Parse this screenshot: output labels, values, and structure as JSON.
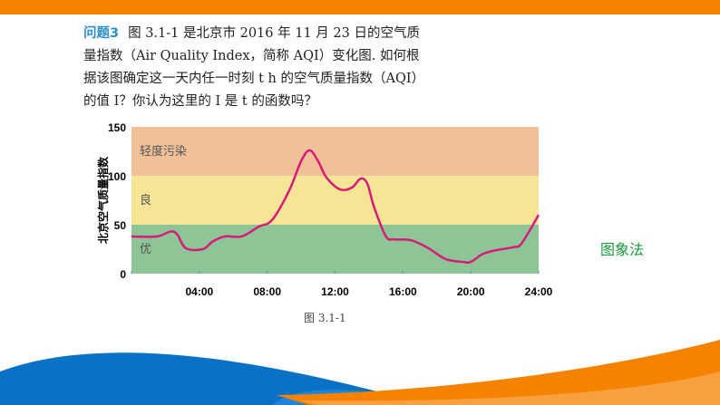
{
  "problem": {
    "label": "问题3",
    "text": "图 3.1-1 是北京市 2016 年 11 月 23 日的空气质量指数（Air Quality Index，简称 AQI）变化图. 如何根据该图确定这一天内任一时刻 t h 的空气质量指数（AQI）的值 I？你认为这里的 I 是 t 的函数吗？"
  },
  "figure_caption": "图 3.1-1",
  "side_label": "图象法",
  "colors": {
    "top_bar": "#f58200",
    "line": "#d81b7a",
    "band_light_pollution": "#f0c198",
    "band_good": "#f7e596",
    "band_excellent": "#8ec596",
    "wave_blue": "#0a72c4",
    "wave_orange": "#f58200"
  },
  "chart_data": {
    "type": "line",
    "ylabel": "北京空气质量指数",
    "xlabel": "",
    "ylim": [
      0,
      150
    ],
    "xlim": [
      0,
      24
    ],
    "yticks": [
      "0",
      "50",
      "100",
      "150"
    ],
    "xticks": [
      "04:00",
      "08:00",
      "12:00",
      "16:00",
      "20:00",
      "24:00"
    ],
    "bands": [
      {
        "label": "优",
        "from": 0,
        "to": 50
      },
      {
        "label": "良",
        "from": 50,
        "to": 100
      },
      {
        "label": "轻度污染",
        "from": 100,
        "to": 150
      }
    ],
    "series": [
      {
        "x": [
          0,
          1.5,
          2.3,
          2.7,
          3.2,
          4.2,
          4.8,
          5.5,
          6.5,
          7.5,
          8.3,
          9.3,
          10,
          10.5,
          11,
          11.5,
          12.3,
          13,
          13.5,
          13.9,
          14.3,
          15,
          15.5,
          16.5,
          17.5,
          18.5,
          19.5,
          20,
          20.7,
          21.5,
          22.5,
          23,
          24
        ],
        "y": [
          38,
          38,
          43,
          40,
          26,
          25,
          33,
          38,
          38,
          48,
          55,
          85,
          115,
          126,
          115,
          98,
          86,
          88,
          97,
          92,
          68,
          38,
          35,
          34,
          26,
          15,
          12,
          12,
          20,
          24,
          27,
          31,
          60
        ]
      }
    ],
    "grid": false
  }
}
